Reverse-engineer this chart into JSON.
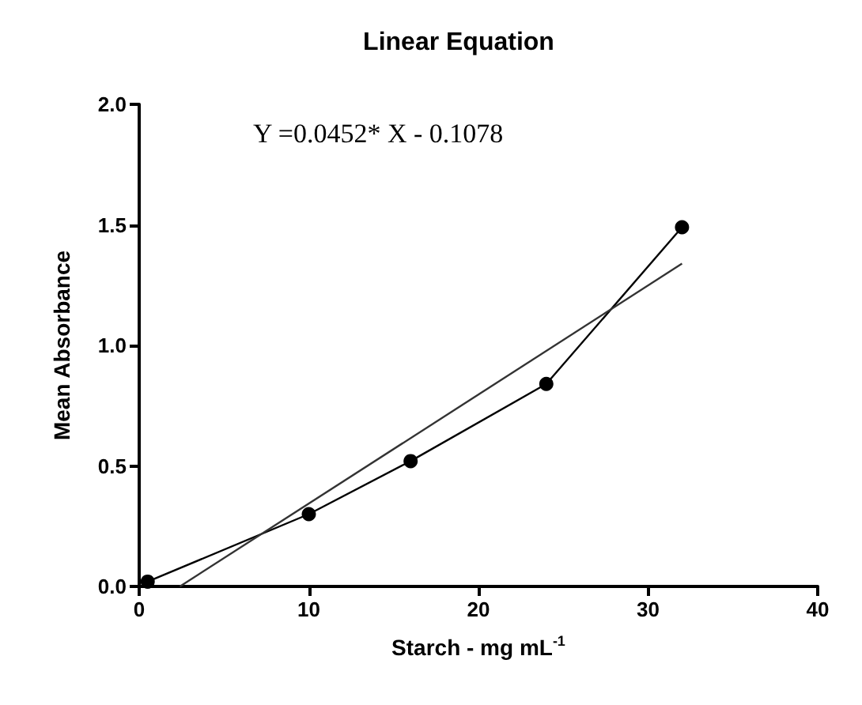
{
  "chart_data": {
    "type": "line",
    "title": "Linear Equation",
    "xlabel": "Starch - mg mL$^{-1}$",
    "ylabel": "Mean Absorbance",
    "annotations": [
      "Y =0.0452* X - 0.1078"
    ],
    "series": [
      {
        "color": "#000000",
        "marker": "circle",
        "x": [
          0.5,
          10,
          16,
          24,
          32
        ],
        "values": [
          0.02,
          0.3,
          0.52,
          0.84,
          1.49
        ]
      },
      {
        "color": "#333333",
        "marker": "none",
        "x": [
          2.4,
          32
        ],
        "values": [
          0,
          1.339
        ]
      }
    ],
    "xlim": [
      0,
      40
    ],
    "xticks": [
      0,
      10,
      20,
      30,
      40
    ],
    "ylim": [
      0,
      2
    ],
    "yticks": [
      {
        "value": 0,
        "label": "0.0"
      },
      {
        "value": 0.5,
        "label": "0.5"
      },
      {
        "value": 1,
        "label": "1.0"
      },
      {
        "value": 1.5,
        "label": "1.5"
      },
      {
        "value": 2,
        "label": "2.0"
      }
    ],
    "grid": false
  }
}
